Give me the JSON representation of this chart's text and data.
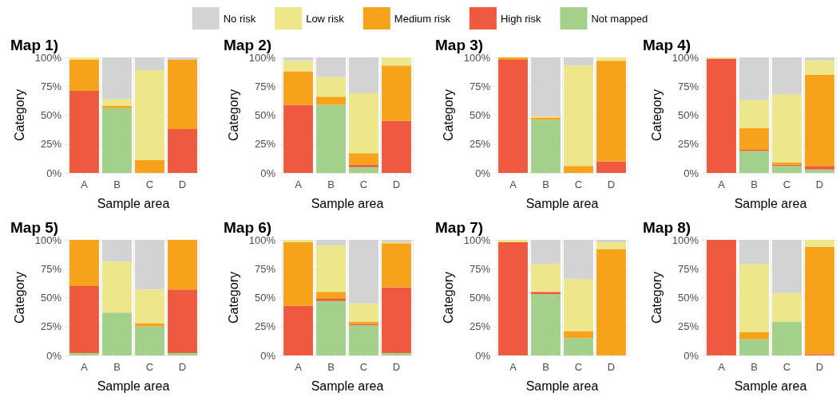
{
  "chart_data": [
    {
      "type": "bar",
      "stacked": true,
      "title": "Map 1)",
      "xlabel": "Sample area",
      "ylabel": "Category",
      "categories": [
        "A",
        "B",
        "C",
        "D"
      ],
      "ylim": [
        0,
        100
      ],
      "yticks": [
        {
          "value": 0,
          "label": "0%"
        },
        {
          "value": 25,
          "label": "25%"
        },
        {
          "value": 50,
          "label": "50%"
        },
        {
          "value": 75,
          "label": "75%"
        },
        {
          "value": 100,
          "label": "100%"
        }
      ],
      "grid": true,
      "legend": "top",
      "series": [
        {
          "name": "Not mapped",
          "color": "#a3d18b",
          "values": [
            0,
            56,
            0,
            0
          ]
        },
        {
          "name": "High risk",
          "color": "#ee5a40",
          "values": [
            71,
            0,
            0,
            38
          ]
        },
        {
          "name": "Medium risk",
          "color": "#f7a21b",
          "values": [
            27,
            2,
            11,
            60
          ]
        },
        {
          "name": "Low risk",
          "color": "#ede68a",
          "values": [
            2,
            6,
            78,
            0
          ]
        },
        {
          "name": "No risk",
          "color": "#d3d3d3",
          "values": [
            0,
            36,
            11,
            2
          ]
        }
      ]
    },
    {
      "type": "bar",
      "stacked": true,
      "title": "Map 2)",
      "xlabel": "Sample area",
      "ylabel": "Category",
      "categories": [
        "A",
        "B",
        "C",
        "D"
      ],
      "ylim": [
        0,
        100
      ],
      "yticks": [
        {
          "value": 0,
          "label": "0%"
        },
        {
          "value": 25,
          "label": "25%"
        },
        {
          "value": 50,
          "label": "50%"
        },
        {
          "value": 75,
          "label": "75%"
        },
        {
          "value": 100,
          "label": "100%"
        }
      ],
      "grid": true,
      "series": [
        {
          "name": "Not mapped",
          "color": "#a3d18b",
          "values": [
            0,
            59,
            5,
            0
          ]
        },
        {
          "name": "High risk",
          "color": "#ee5a40",
          "values": [
            59,
            0,
            2,
            45
          ]
        },
        {
          "name": "Medium risk",
          "color": "#f7a21b",
          "values": [
            29,
            7,
            10,
            48
          ]
        },
        {
          "name": "Low risk",
          "color": "#ede68a",
          "values": [
            9,
            17,
            52,
            7
          ]
        },
        {
          "name": "No risk",
          "color": "#d3d3d3",
          "values": [
            3,
            17,
            31,
            0
          ]
        }
      ]
    },
    {
      "type": "bar",
      "stacked": true,
      "title": "Map 3)",
      "xlabel": "Sample area",
      "ylabel": "Category",
      "categories": [
        "A",
        "B",
        "C",
        "D"
      ],
      "ylim": [
        0,
        100
      ],
      "yticks": [
        {
          "value": 0,
          "label": "0%"
        },
        {
          "value": 25,
          "label": "25%"
        },
        {
          "value": 50,
          "label": "50%"
        },
        {
          "value": 75,
          "label": "75%"
        },
        {
          "value": 100,
          "label": "100%"
        }
      ],
      "grid": true,
      "series": [
        {
          "name": "Not mapped",
          "color": "#a3d18b",
          "values": [
            0,
            46,
            0,
            0
          ]
        },
        {
          "name": "High risk",
          "color": "#ee5a40",
          "values": [
            98,
            0,
            0,
            10
          ]
        },
        {
          "name": "Medium risk",
          "color": "#f7a21b",
          "values": [
            2,
            2,
            6,
            87
          ]
        },
        {
          "name": "Low risk",
          "color": "#ede68a",
          "values": [
            0,
            1,
            87,
            3
          ]
        },
        {
          "name": "No risk",
          "color": "#d3d3d3",
          "values": [
            0,
            51,
            7,
            0
          ]
        }
      ]
    },
    {
      "type": "bar",
      "stacked": true,
      "title": "Map 4)",
      "xlabel": "Sample area",
      "ylabel": "Category",
      "categories": [
        "A",
        "B",
        "C",
        "D"
      ],
      "ylim": [
        0,
        100
      ],
      "yticks": [
        {
          "value": 0,
          "label": "0%"
        },
        {
          "value": 25,
          "label": "25%"
        },
        {
          "value": 50,
          "label": "50%"
        },
        {
          "value": 75,
          "label": "75%"
        },
        {
          "value": 100,
          "label": "100%"
        }
      ],
      "grid": true,
      "series": [
        {
          "name": "Not mapped",
          "color": "#a3d18b",
          "values": [
            0,
            19,
            6,
            3
          ]
        },
        {
          "name": "High risk",
          "color": "#ee5a40",
          "values": [
            99,
            1,
            1,
            3
          ]
        },
        {
          "name": "Medium risk",
          "color": "#f7a21b",
          "values": [
            0,
            19,
            2,
            79
          ]
        },
        {
          "name": "Low risk",
          "color": "#ede68a",
          "values": [
            1,
            24,
            59,
            12
          ]
        },
        {
          "name": "No risk",
          "color": "#d3d3d3",
          "values": [
            0,
            37,
            32,
            3
          ]
        }
      ]
    },
    {
      "type": "bar",
      "stacked": true,
      "title": "Map 5)",
      "xlabel": "Sample area",
      "ylabel": "Category",
      "categories": [
        "A",
        "B",
        "C",
        "D"
      ],
      "ylim": [
        0,
        100
      ],
      "yticks": [
        {
          "value": 0,
          "label": "0%"
        },
        {
          "value": 25,
          "label": "25%"
        },
        {
          "value": 50,
          "label": "50%"
        },
        {
          "value": 75,
          "label": "75%"
        },
        {
          "value": 100,
          "label": "100%"
        }
      ],
      "grid": true,
      "series": [
        {
          "name": "Not mapped",
          "color": "#a3d18b",
          "values": [
            2,
            37,
            25,
            2
          ]
        },
        {
          "name": "High risk",
          "color": "#ee5a40",
          "values": [
            58,
            0,
            0,
            55
          ]
        },
        {
          "name": "Medium risk",
          "color": "#f7a21b",
          "values": [
            40,
            0,
            3,
            43
          ]
        },
        {
          "name": "Low risk",
          "color": "#ede68a",
          "values": [
            0,
            44,
            29,
            0
          ]
        },
        {
          "name": "No risk",
          "color": "#d3d3d3",
          "values": [
            0,
            19,
            43,
            0
          ]
        }
      ]
    },
    {
      "type": "bar",
      "stacked": true,
      "title": "Map 6)",
      "xlabel": "Sample area",
      "ylabel": "Category",
      "categories": [
        "A",
        "B",
        "C",
        "D"
      ],
      "ylim": [
        0,
        100
      ],
      "yticks": [
        {
          "value": 0,
          "label": "0%"
        },
        {
          "value": 25,
          "label": "25%"
        },
        {
          "value": 50,
          "label": "50%"
        },
        {
          "value": 75,
          "label": "75%"
        },
        {
          "value": 100,
          "label": "100%"
        }
      ],
      "grid": true,
      "series": [
        {
          "name": "Not mapped",
          "color": "#a3d18b",
          "values": [
            0,
            47,
            26,
            2
          ]
        },
        {
          "name": "High risk",
          "color": "#ee5a40",
          "values": [
            43,
            2,
            1,
            57
          ]
        },
        {
          "name": "Medium risk",
          "color": "#f7a21b",
          "values": [
            55,
            6,
            2,
            38
          ]
        },
        {
          "name": "Low risk",
          "color": "#ede68a",
          "values": [
            2,
            40,
            16,
            1
          ]
        },
        {
          "name": "No risk",
          "color": "#d3d3d3",
          "values": [
            0,
            5,
            55,
            2
          ]
        }
      ]
    },
    {
      "type": "bar",
      "stacked": true,
      "title": "Map 7)",
      "xlabel": "Sample area",
      "ylabel": "Category",
      "categories": [
        "A",
        "B",
        "C",
        "D"
      ],
      "ylim": [
        0,
        100
      ],
      "yticks": [
        {
          "value": 0,
          "label": "0%"
        },
        {
          "value": 25,
          "label": "25%"
        },
        {
          "value": 50,
          "label": "50%"
        },
        {
          "value": 75,
          "label": "75%"
        },
        {
          "value": 100,
          "label": "100%"
        }
      ],
      "grid": true,
      "series": [
        {
          "name": "Not mapped",
          "color": "#a3d18b",
          "values": [
            0,
            53,
            15,
            0
          ]
        },
        {
          "name": "High risk",
          "color": "#ee5a40",
          "values": [
            98,
            2,
            0,
            0
          ]
        },
        {
          "name": "Medium risk",
          "color": "#f7a21b",
          "values": [
            0,
            0,
            6,
            92
          ]
        },
        {
          "name": "Low risk",
          "color": "#ede68a",
          "values": [
            2,
            24,
            45,
            6
          ]
        },
        {
          "name": "No risk",
          "color": "#d3d3d3",
          "values": [
            0,
            21,
            34,
            2
          ]
        }
      ]
    },
    {
      "type": "bar",
      "stacked": true,
      "title": "Map 8)",
      "xlabel": "Sample area",
      "ylabel": "Category",
      "categories": [
        "A",
        "B",
        "C",
        "D"
      ],
      "ylim": [
        0,
        100
      ],
      "yticks": [
        {
          "value": 0,
          "label": "0%"
        },
        {
          "value": 25,
          "label": "25%"
        },
        {
          "value": 50,
          "label": "50%"
        },
        {
          "value": 75,
          "label": "75%"
        },
        {
          "value": 100,
          "label": "100%"
        }
      ],
      "grid": true,
      "series": [
        {
          "name": "Not mapped",
          "color": "#a3d18b",
          "values": [
            0,
            14,
            29,
            0
          ]
        },
        {
          "name": "High risk",
          "color": "#ee5a40",
          "values": [
            100,
            0,
            0,
            1
          ]
        },
        {
          "name": "Medium risk",
          "color": "#f7a21b",
          "values": [
            0,
            6,
            0,
            93
          ]
        },
        {
          "name": "Low risk",
          "color": "#ede68a",
          "values": [
            0,
            59,
            25,
            6
          ]
        },
        {
          "name": "No risk",
          "color": "#d3d3d3",
          "values": [
            0,
            21,
            46,
            0
          ]
        }
      ]
    }
  ]
}
